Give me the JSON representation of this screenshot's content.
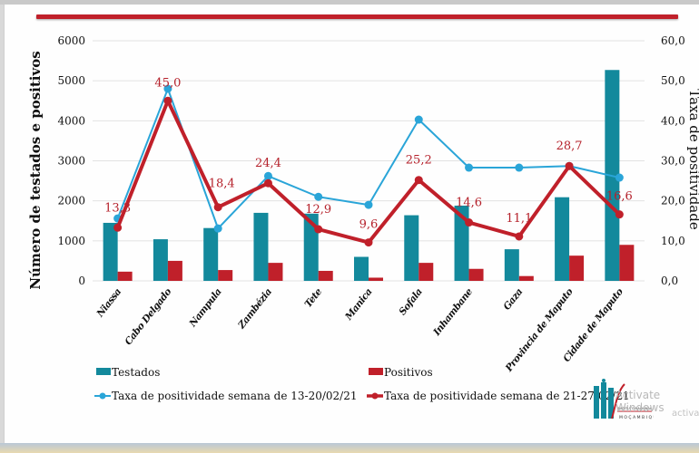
{
  "chart_data": {
    "type": "bar",
    "title": "",
    "xlabel": "",
    "ylabel": "Número de testados e positivos",
    "ylabel_right": "Taxa de positividade",
    "ylim": [
      0,
      6000
    ],
    "ylim_right": [
      0,
      60
    ],
    "yticks": [
      "0",
      "1000",
      "2000",
      "3000",
      "4000",
      "5000",
      "6000"
    ],
    "yticks_right": [
      "0,0",
      "10,0",
      "20,0",
      "30,0",
      "40,0",
      "50,0",
      "60,0"
    ],
    "grid": true,
    "legend_position": "bottom",
    "categories": [
      "Niassa",
      "Cabo Delgado",
      "Nampula",
      "Zambézia",
      "Tete",
      "Manica",
      "Sofala",
      "Inhambane",
      "Gaza",
      "Provincia de Maputo",
      "Cidade de Maputo"
    ],
    "series": [
      {
        "name": "Testados",
        "type": "bar",
        "axis": "left",
        "color": "#13899c",
        "values": [
          1450,
          1040,
          1320,
          1700,
          1680,
          600,
          1640,
          1880,
          790,
          2090,
          5270
        ]
      },
      {
        "name": "Positivos",
        "type": "bar",
        "axis": "left",
        "color": "#c0202a",
        "values": [
          230,
          500,
          270,
          450,
          250,
          80,
          450,
          300,
          120,
          630,
          900
        ]
      },
      {
        "name": "Taxa de positividade semana de 13-20/02/21",
        "type": "line",
        "axis": "right",
        "color": "#2aa5d8",
        "values": [
          15.6,
          48.0,
          13.1,
          26.2,
          21.0,
          19.0,
          40.3,
          28.3,
          28.3,
          28.7,
          25.8
        ]
      },
      {
        "name": "Taxa de positividade semana de 21-27/02/21",
        "type": "line",
        "axis": "right",
        "color": "#c0202a",
        "values": [
          13.3,
          45.0,
          18.4,
          24.4,
          12.9,
          9.6,
          25.2,
          14.6,
          11.1,
          28.7,
          16.6
        ],
        "data_labels": [
          "13,3",
          "45,0",
          "18,4",
          "24,4",
          "12,9",
          "9,6",
          "25,2",
          "14,6",
          "11,1",
          "28,7",
          "16,6"
        ]
      }
    ]
  },
  "overlay": {
    "watermark_line1": "Activate Windows",
    "watermark_line2": "activat",
    "logo_text_1": "INSTITUTO NACIONAL DE SAÚDE",
    "logo_text_2": "MOÇAMBIQUE"
  }
}
